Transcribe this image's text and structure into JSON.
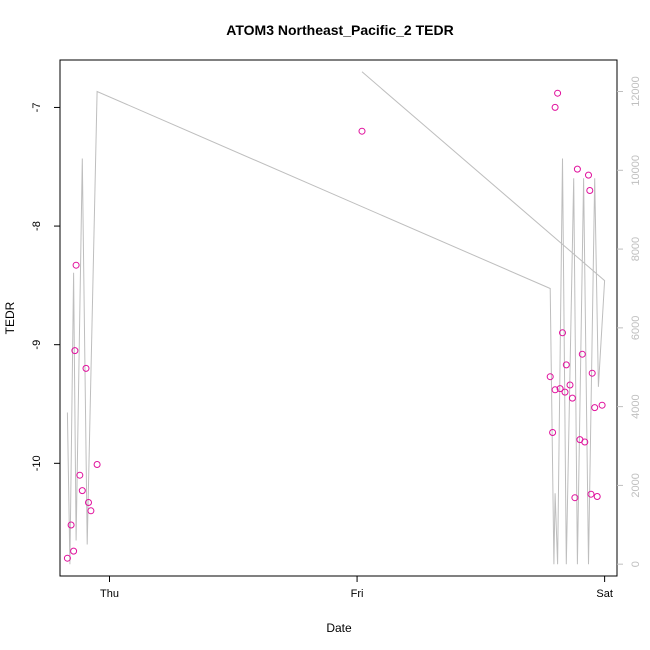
{
  "chart_data": {
    "type": "scatter",
    "title": "ATOM3 Northeast_Pacific_2 TEDR",
    "xlabel": "Date",
    "ylabel": "TEDR",
    "x_ticks": [
      "Thu",
      "Fri",
      "Sat"
    ],
    "y_ticks": [
      -7,
      -8,
      -9,
      -10
    ],
    "y_ticks_right": [
      0,
      2000,
      4000,
      6000,
      8000,
      10000,
      12000
    ],
    "xlim_days": [
      -0.2,
      2.05
    ],
    "ylim": [
      -10.95,
      -6.6
    ],
    "ylim_right": [
      -300,
      12800
    ],
    "colors": {
      "points": "#e0119d",
      "line": "#bebebe",
      "axis": "#000000",
      "right_axis": "#bfbfbf"
    },
    "series": [
      {
        "values": [
          [
            -0.17,
            -10.8
          ],
          [
            -0.155,
            -10.52
          ],
          [
            -0.145,
            -10.74
          ],
          [
            -0.14,
            -9.05
          ],
          [
            -0.135,
            -8.33
          ],
          [
            -0.12,
            -10.1
          ],
          [
            -0.11,
            -10.23
          ],
          [
            -0.095,
            -9.2
          ],
          [
            -0.085,
            -10.33
          ],
          [
            -0.075,
            -10.4
          ],
          [
            -0.05,
            -10.01
          ],
          [
            1.02,
            -7.2
          ],
          [
            1.78,
            -9.27
          ],
          [
            1.79,
            -9.74
          ],
          [
            1.8,
            -9.38
          ],
          [
            1.8,
            -7.0
          ],
          [
            1.81,
            -6.88
          ],
          [
            1.82,
            -9.37
          ],
          [
            1.83,
            -8.9
          ],
          [
            1.84,
            -9.4
          ],
          [
            1.845,
            -9.17
          ],
          [
            1.86,
            -9.34
          ],
          [
            1.87,
            -9.45
          ],
          [
            1.88,
            -10.29
          ],
          [
            1.89,
            -7.52
          ],
          [
            1.9,
            -9.8
          ],
          [
            1.91,
            -9.08
          ],
          [
            1.92,
            -9.82
          ],
          [
            1.935,
            -7.57
          ],
          [
            1.94,
            -7.7
          ],
          [
            1.945,
            -10.26
          ],
          [
            1.95,
            -9.24
          ],
          [
            1.96,
            -9.53
          ],
          [
            1.97,
            -10.28
          ],
          [
            1.99,
            -9.51
          ]
        ]
      },
      {
        "axis": "right",
        "values": [
          [
            -0.17,
            3850
          ],
          [
            -0.16,
            0
          ],
          [
            -0.145,
            7400
          ],
          [
            -0.135,
            600
          ],
          [
            -0.11,
            10300
          ],
          [
            -0.09,
            500
          ],
          [
            -0.05,
            12000
          ],
          [
            1.78,
            7000
          ],
          [
            1.795,
            0
          ],
          [
            1.8,
            1800
          ],
          [
            1.81,
            0
          ],
          [
            1.83,
            10300
          ],
          [
            1.845,
            0
          ],
          [
            1.875,
            9800
          ],
          [
            1.89,
            0
          ],
          [
            1.915,
            9800
          ],
          [
            1.935,
            0
          ],
          [
            1.96,
            9800
          ],
          [
            1.975,
            4500
          ],
          [
            2.0,
            7200
          ],
          [
            1.02,
            12500
          ]
        ]
      }
    ]
  }
}
